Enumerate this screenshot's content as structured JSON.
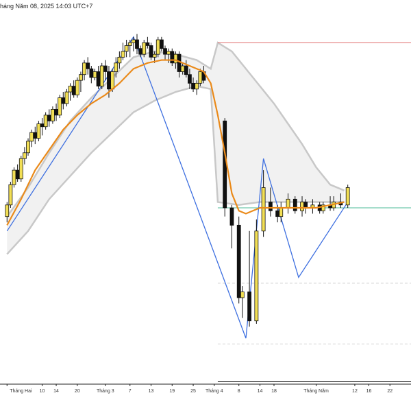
{
  "header": {
    "timestamp": "háng Năm 08, 2025 14:03 UTC+7"
  },
  "chart_data": {
    "type": "candlestick",
    "grid": false,
    "x_axis": {
      "ticks": [
        {
          "label": "Tháng Hai",
          "day": 0
        },
        {
          "label": "10",
          "day": 10
        },
        {
          "label": "14",
          "day": 14
        },
        {
          "label": "20",
          "day": 20
        },
        {
          "label": "Tháng 3",
          "day": 28
        },
        {
          "label": "7",
          "day": 35
        },
        {
          "label": "13",
          "day": 41
        },
        {
          "label": "19",
          "day": 47
        },
        {
          "label": "25",
          "day": 53
        },
        {
          "label": "Tháng 4",
          "day": 59
        },
        {
          "label": "8",
          "day": 66
        },
        {
          "label": "14",
          "day": 72
        },
        {
          "label": "18",
          "day": 76
        },
        {
          "label": "Tháng Năm",
          "day": 88
        },
        {
          "label": "12",
          "day": 99
        },
        {
          "label": "16",
          "day": 103
        },
        {
          "label": "22",
          "day": 109
        }
      ]
    },
    "y_range": [
      0,
      100
    ],
    "colors": {
      "bull": "#f2df55",
      "bear": "#111111",
      "ma_line": "#ea8a1a",
      "envelope_edge": "#c8c8c8",
      "envelope_fill": "#ececec",
      "zigzag": "#3d6fe0",
      "level_red": "#e06a6a",
      "level_green": "#4dbb99",
      "level_dashed": "#cfcfcf",
      "level_black": "#222222"
    },
    "candles": [
      {
        "day": 0,
        "o": 40,
        "h": 45,
        "l": 38,
        "c": 44
      },
      {
        "day": 1,
        "o": 44,
        "h": 52,
        "l": 43,
        "c": 51
      },
      {
        "day": 2,
        "o": 51,
        "h": 57,
        "l": 50,
        "c": 56
      },
      {
        "day": 3,
        "o": 56,
        "h": 58,
        "l": 52,
        "c": 53
      },
      {
        "day": 4,
        "o": 53,
        "h": 61,
        "l": 52,
        "c": 60
      },
      {
        "day": 5,
        "o": 60,
        "h": 64,
        "l": 58,
        "c": 62
      },
      {
        "day": 6,
        "o": 62,
        "h": 67,
        "l": 61,
        "c": 66
      },
      {
        "day": 7,
        "o": 66,
        "h": 70,
        "l": 64,
        "c": 69
      },
      {
        "day": 8,
        "o": 69,
        "h": 71,
        "l": 65,
        "c": 67
      },
      {
        "day": 9,
        "o": 67,
        "h": 73,
        "l": 66,
        "c": 72
      },
      {
        "day": 10,
        "o": 72,
        "h": 74,
        "l": 68,
        "c": 71
      },
      {
        "day": 11,
        "o": 71,
        "h": 76,
        "l": 70,
        "c": 75
      },
      {
        "day": 12,
        "o": 75,
        "h": 77,
        "l": 71,
        "c": 73
      },
      {
        "day": 13,
        "o": 73,
        "h": 78,
        "l": 72,
        "c": 77
      },
      {
        "day": 14,
        "o": 77,
        "h": 79,
        "l": 73,
        "c": 75
      },
      {
        "day": 15,
        "o": 75,
        "h": 82,
        "l": 74,
        "c": 81
      },
      {
        "day": 16,
        "o": 81,
        "h": 83,
        "l": 77,
        "c": 79
      },
      {
        "day": 17,
        "o": 79,
        "h": 84,
        "l": 78,
        "c": 83
      },
      {
        "day": 18,
        "o": 83,
        "h": 86,
        "l": 80,
        "c": 85
      },
      {
        "day": 19,
        "o": 85,
        "h": 87,
        "l": 81,
        "c": 82
      },
      {
        "day": 20,
        "o": 82,
        "h": 88,
        "l": 81,
        "c": 87
      },
      {
        "day": 21,
        "o": 87,
        "h": 90,
        "l": 83,
        "c": 89
      },
      {
        "day": 22,
        "o": 89,
        "h": 94,
        "l": 87,
        "c": 93
      },
      {
        "day": 23,
        "o": 93,
        "h": 95,
        "l": 89,
        "c": 91
      },
      {
        "day": 24,
        "o": 91,
        "h": 92,
        "l": 86,
        "c": 88
      },
      {
        "day": 25,
        "o": 88,
        "h": 91,
        "l": 87,
        "c": 90
      },
      {
        "day": 26,
        "o": 90,
        "h": 92,
        "l": 84,
        "c": 85
      },
      {
        "day": 27,
        "o": 85,
        "h": 93,
        "l": 84,
        "c": 92
      },
      {
        "day": 28,
        "o": 92,
        "h": 94,
        "l": 87,
        "c": 90
      },
      {
        "day": 29,
        "o": 90,
        "h": 92,
        "l": 81,
        "c": 84
      },
      {
        "day": 30,
        "o": 84,
        "h": 91,
        "l": 83,
        "c": 90
      },
      {
        "day": 31,
        "o": 90,
        "h": 95,
        "l": 88,
        "c": 93
      },
      {
        "day": 32,
        "o": 93,
        "h": 97,
        "l": 91,
        "c": 95
      },
      {
        "day": 33,
        "o": 95,
        "h": 100,
        "l": 94,
        "c": 97
      },
      {
        "day": 34,
        "o": 97,
        "h": 101,
        "l": 95,
        "c": 99
      },
      {
        "day": 35,
        "o": 99,
        "h": 101,
        "l": 95,
        "c": 100
      },
      {
        "day": 36,
        "o": 100,
        "h": 102,
        "l": 97,
        "c": 101
      },
      {
        "day": 37,
        "o": 101,
        "h": 103,
        "l": 96,
        "c": 98
      },
      {
        "day": 38,
        "o": 98,
        "h": 99,
        "l": 95,
        "c": 96
      },
      {
        "day": 39,
        "o": 96,
        "h": 101,
        "l": 95,
        "c": 100
      }
    ],
    "moving_average": [],
    "envelope_upper": [],
    "envelope_lower": [],
    "zigzag": [],
    "levels": []
  }
}
